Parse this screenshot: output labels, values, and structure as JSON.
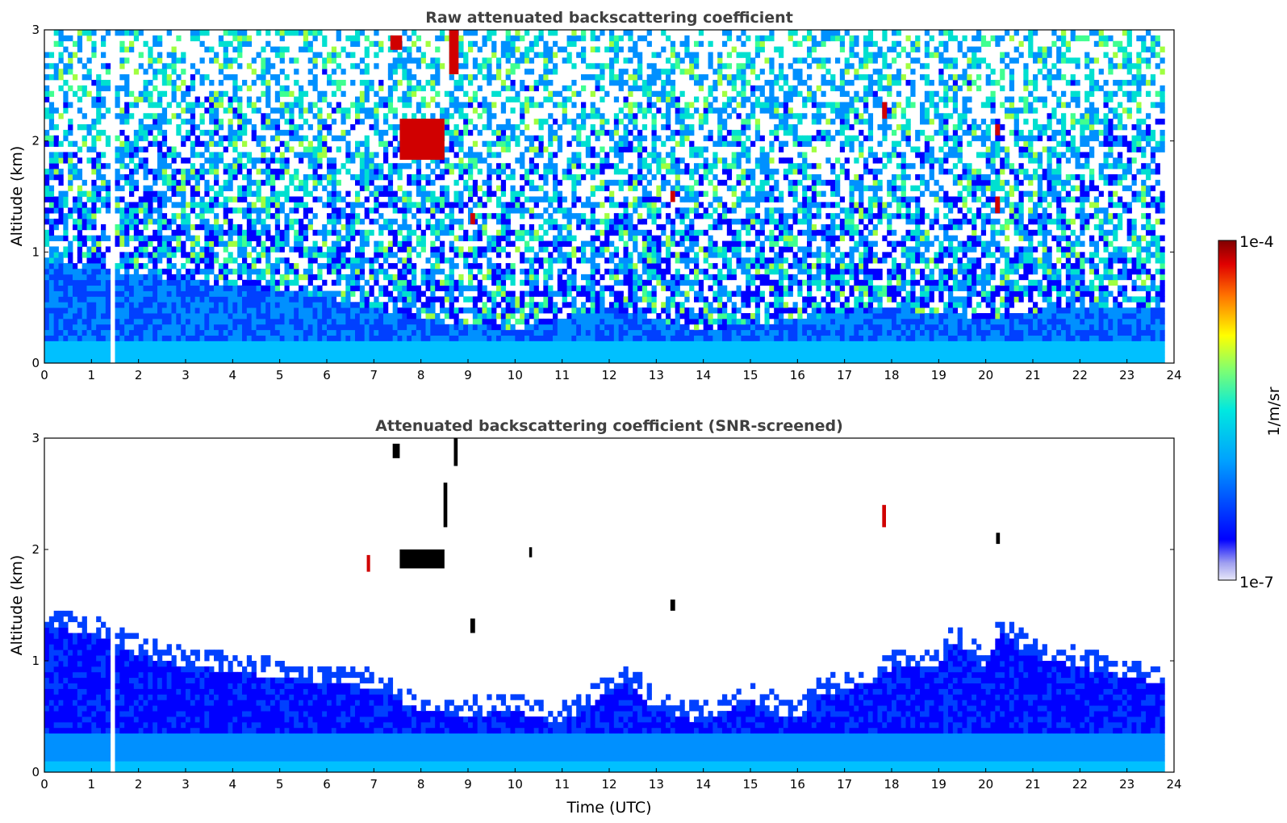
{
  "chart_data": [
    {
      "type": "heatmap",
      "title": "Raw attenuated backscattering coefficient",
      "xlabel": "",
      "ylabel": "Altitude (km)",
      "xlim": [
        0,
        24
      ],
      "ylim": [
        0,
        3
      ],
      "x_ticks": [
        "0",
        "1",
        "2",
        "3",
        "4",
        "5",
        "6",
        "7",
        "8",
        "9",
        "10",
        "11",
        "12",
        "13",
        "14",
        "15",
        "16",
        "17",
        "18",
        "19",
        "20",
        "21",
        "22",
        "23",
        "24"
      ],
      "y_ticks": [
        "0",
        "1",
        "2",
        "3"
      ],
      "data_gaps": [
        [
          1.45,
          1.55
        ],
        [
          23.8,
          24
        ]
      ],
      "boundary_layer_top_km": [
        [
          0,
          0.9
        ],
        [
          2,
          0.8
        ],
        [
          4,
          0.7
        ],
        [
          6,
          0.6
        ],
        [
          8,
          0.4
        ],
        [
          10,
          0.3
        ],
        [
          12,
          0.5
        ],
        [
          14,
          0.3
        ],
        [
          16,
          0.4
        ],
        [
          18,
          0.5
        ],
        [
          20,
          0.4
        ],
        [
          22,
          0.5
        ],
        [
          23.8,
          0.5
        ]
      ],
      "cloud_features": [
        {
          "t0": 7.55,
          "t1": 8.5,
          "z0": 1.83,
          "z1": 2.2,
          "level": "high"
        },
        {
          "t0": 7.35,
          "t1": 7.6,
          "z0": 2.82,
          "z1": 2.95,
          "level": "high"
        },
        {
          "t0": 8.6,
          "t1": 8.8,
          "z0": 2.6,
          "z1": 3.0,
          "level": "high"
        },
        {
          "t0": 9.05,
          "t1": 9.15,
          "z0": 1.25,
          "z1": 1.35,
          "level": "high"
        },
        {
          "t0": 13.3,
          "t1": 13.4,
          "z0": 1.45,
          "z1": 1.55,
          "level": "high"
        },
        {
          "t0": 17.8,
          "t1": 17.9,
          "z0": 2.2,
          "z1": 2.35,
          "level": "high"
        },
        {
          "t0": 20.2,
          "t1": 20.3,
          "z0": 2.05,
          "z1": 2.15,
          "level": "high"
        },
        {
          "t0": 20.2,
          "t1": 20.3,
          "z0": 1.35,
          "z1": 1.5,
          "level": "high"
        }
      ]
    },
    {
      "type": "heatmap",
      "title": "Attenuated backscattering coefficient (SNR-screened)",
      "xlabel": "Time (UTC)",
      "ylabel": "Altitude (km)",
      "xlim": [
        0,
        24
      ],
      "ylim": [
        0,
        3
      ],
      "x_ticks": [
        "0",
        "1",
        "2",
        "3",
        "4",
        "5",
        "6",
        "7",
        "8",
        "9",
        "10",
        "11",
        "12",
        "13",
        "14",
        "15",
        "16",
        "17",
        "18",
        "19",
        "20",
        "21",
        "22",
        "23",
        "24"
      ],
      "y_ticks": [
        "0",
        "1",
        "2",
        "3"
      ],
      "data_gaps": [
        [
          1.45,
          1.55
        ],
        [
          23.8,
          24
        ]
      ],
      "signal_top_km": [
        [
          0,
          1.35
        ],
        [
          1,
          1.3
        ],
        [
          2,
          1.1
        ],
        [
          3,
          1.0
        ],
        [
          4,
          0.95
        ],
        [
          5,
          0.9
        ],
        [
          6,
          0.85
        ],
        [
          7,
          0.8
        ],
        [
          7.5,
          0.7
        ],
        [
          8,
          0.6
        ],
        [
          9,
          0.55
        ],
        [
          10,
          0.6
        ],
        [
          10.5,
          0.55
        ],
        [
          11,
          0.5
        ],
        [
          11.5,
          0.6
        ],
        [
          12,
          0.8
        ],
        [
          12.5,
          0.85
        ],
        [
          13,
          0.6
        ],
        [
          14,
          0.5
        ],
        [
          15,
          0.7
        ],
        [
          15.5,
          0.6
        ],
        [
          16,
          0.5
        ],
        [
          16.5,
          0.75
        ],
        [
          17,
          0.8
        ],
        [
          17.8,
          0.9
        ],
        [
          18,
          1.0
        ],
        [
          19,
          1.0
        ],
        [
          19.3,
          1.2
        ],
        [
          20,
          1.0
        ],
        [
          20.3,
          1.3
        ],
        [
          21,
          1.1
        ],
        [
          22,
          1.0
        ],
        [
          23,
          0.9
        ],
        [
          23.8,
          0.85
        ]
      ],
      "cloud_features": [
        {
          "t0": 7.55,
          "t1": 8.5,
          "z0": 1.83,
          "z1": 2.0,
          "level": "saturated"
        },
        {
          "t0": 7.4,
          "t1": 7.55,
          "z0": 2.82,
          "z1": 2.95,
          "level": "saturated"
        },
        {
          "t0": 8.7,
          "t1": 8.78,
          "z0": 2.75,
          "z1": 3.0,
          "level": "saturated"
        },
        {
          "t0": 8.48,
          "t1": 8.56,
          "z0": 2.2,
          "z1": 2.6,
          "level": "saturated"
        },
        {
          "t0": 9.05,
          "t1": 9.15,
          "z0": 1.25,
          "z1": 1.38,
          "level": "saturated"
        },
        {
          "t0": 13.3,
          "t1": 13.4,
          "z0": 1.45,
          "z1": 1.55,
          "level": "saturated"
        },
        {
          "t0": 17.8,
          "t1": 17.88,
          "z0": 2.2,
          "z1": 2.4,
          "level": "high"
        },
        {
          "t0": 20.22,
          "t1": 20.3,
          "z0": 2.05,
          "z1": 2.15,
          "level": "saturated"
        },
        {
          "t0": 10.3,
          "t1": 10.36,
          "z0": 1.93,
          "z1": 2.02,
          "level": "saturated"
        },
        {
          "t0": 6.85,
          "t1": 6.92,
          "z0": 1.8,
          "z1": 1.95,
          "level": "high"
        }
      ]
    }
  ],
  "colorbar": {
    "label": "1/m/sr",
    "max_label": "1e-4",
    "min_label": "1e-7",
    "scale": "log",
    "range": [
      1e-07,
      0.0001
    ],
    "colormap": "jet",
    "colors": [
      "#e8e8f8",
      "#b8b8ec",
      "#8080ff",
      "#0000ff",
      "#0040ff",
      "#0090ff",
      "#00c0ff",
      "#00e0d0",
      "#40ff90",
      "#a0ff40",
      "#ffff00",
      "#ffc000",
      "#ff7000",
      "#ff2000",
      "#d00000",
      "#800000"
    ]
  }
}
